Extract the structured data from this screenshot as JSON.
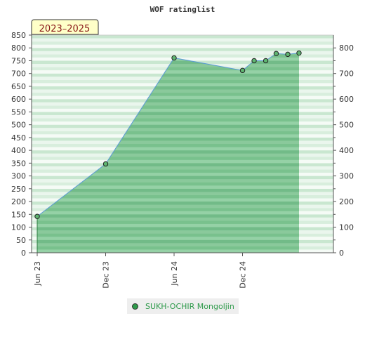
{
  "chart_data": {
    "type": "area",
    "title": "WOF ratinglist",
    "badge": "2023–2025",
    "xlabel": "",
    "ylabel": "",
    "x_range": [
      "2023-06-01",
      "2025-08-01"
    ],
    "ylim": [
      0,
      850
    ],
    "y_ticks_left": [
      0,
      50,
      100,
      150,
      200,
      250,
      300,
      350,
      400,
      450,
      500,
      550,
      600,
      650,
      700,
      750,
      800,
      850
    ],
    "y_ticks_right": [
      0,
      100,
      200,
      300,
      400,
      500,
      600,
      700,
      800
    ],
    "x_ticks": [
      {
        "date": "2023-06-01",
        "label": "Jun 23"
      },
      {
        "date": "2023-12-01",
        "label": "Dec 23"
      },
      {
        "date": "2024-06-01",
        "label": "Jun 24"
      },
      {
        "date": "2024-12-01",
        "label": "Dec 24"
      }
    ],
    "series": [
      {
        "name": "SUKH-OCHIR Mongoljin",
        "color": "#2e9a4a",
        "line_color": "#5b9bd5",
        "points": [
          {
            "x": "2023-06-01",
            "y": 142
          },
          {
            "x": "2023-12-01",
            "y": 347
          },
          {
            "x": "2024-06-01",
            "y": 761
          },
          {
            "x": "2024-12-01",
            "y": 712
          },
          {
            "x": "2025-01-01",
            "y": 750
          },
          {
            "x": "2025-02-01",
            "y": 750
          },
          {
            "x": "2025-03-01",
            "y": 778
          },
          {
            "x": "2025-04-01",
            "y": 775
          },
          {
            "x": "2025-05-01",
            "y": 780
          }
        ]
      }
    ],
    "grid": true,
    "legend_position": "bottom"
  }
}
